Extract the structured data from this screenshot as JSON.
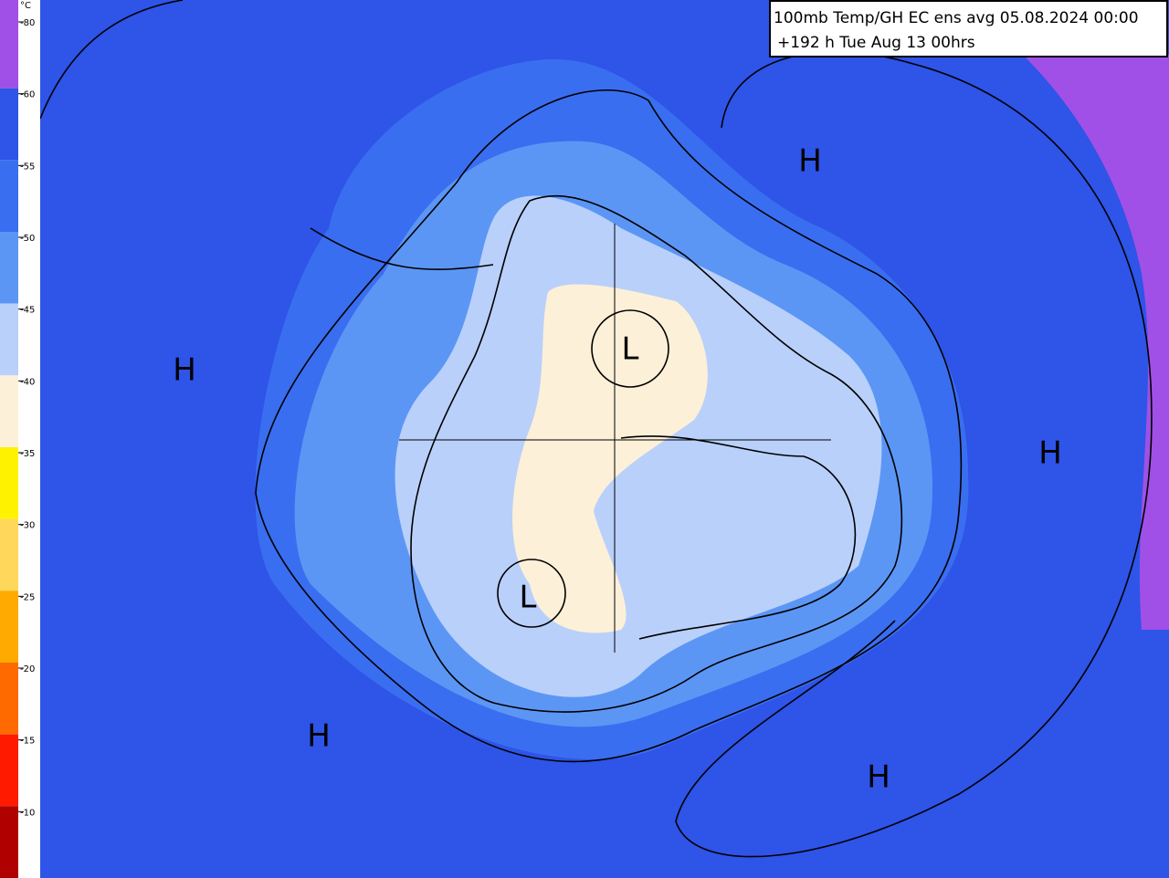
{
  "header": {
    "line1": "100mb Temp/GH  EC ens avg 05.08.2024 00:00",
    "line2": "+192 h Tue Aug 13 00hrs"
  },
  "legend": {
    "unit": "°C",
    "entries": [
      {
        "label": "-80",
        "color": "#a050e6"
      },
      {
        "label": "-60",
        "color": "#2e54e8"
      },
      {
        "label": "-55",
        "color": "#3a6ef0"
      },
      {
        "label": "-50",
        "color": "#5c96f5"
      },
      {
        "label": "-45",
        "color": "#b9d0fa"
      },
      {
        "label": "-40",
        "color": "#fdf0d8"
      },
      {
        "label": "-35",
        "color": "#fff200"
      },
      {
        "label": "-30",
        "color": "#ffd75a"
      },
      {
        "label": "-25",
        "color": "#ffaa00"
      },
      {
        "label": "-20",
        "color": "#ff6a00"
      },
      {
        "label": "-15",
        "color": "#ff1a00"
      },
      {
        "label": "-10",
        "color": "#b00000"
      }
    ]
  },
  "map": {
    "pressure_centers": [
      "H",
      "H",
      "H",
      "H",
      "H",
      "L",
      "L"
    ]
  }
}
